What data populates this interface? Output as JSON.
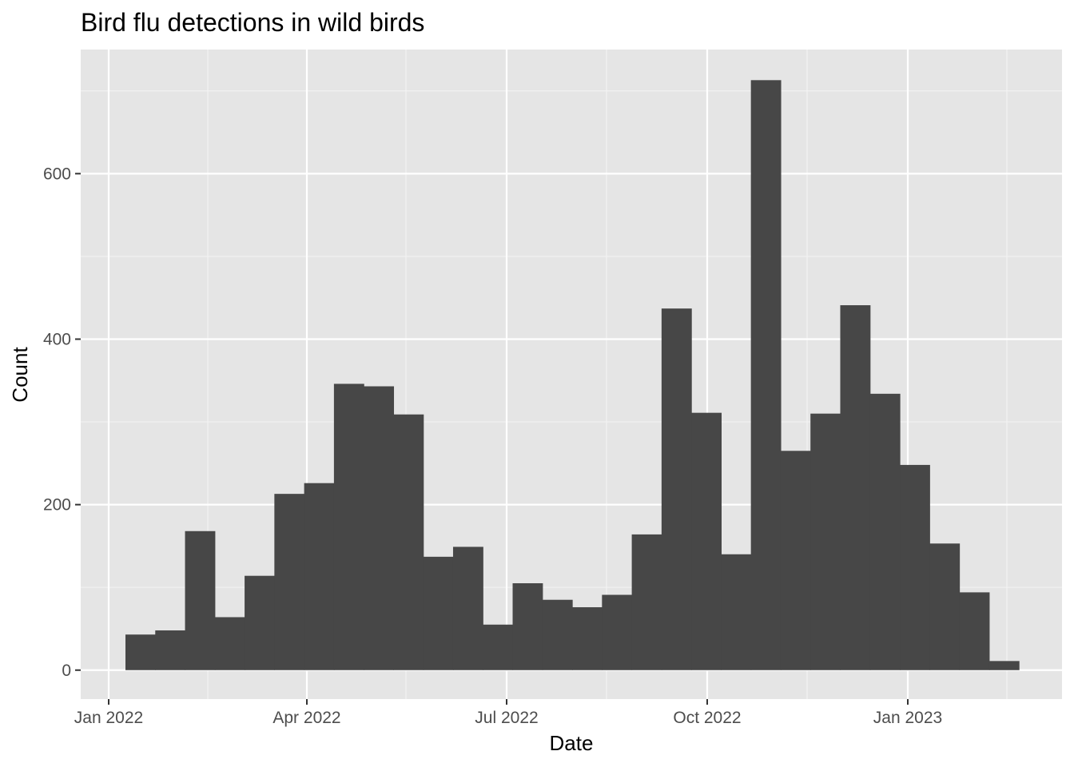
{
  "chart_data": {
    "type": "bar",
    "title": "Bird flu detections in wild birds",
    "xlabel": "Date",
    "ylabel": "Count",
    "x_tick_labels": [
      "Jan 2022",
      "Apr 2022",
      "Jul 2022",
      "Oct 2022",
      "Jan 2023"
    ],
    "y_tick_labels": [
      "0",
      "200",
      "400",
      "600"
    ],
    "y_ticks": [
      0,
      200,
      400,
      600
    ],
    "ylim": [
      -35,
      750
    ],
    "bin_count": 30,
    "values": [
      43,
      48,
      168,
      64,
      114,
      213,
      226,
      346,
      343,
      309,
      137,
      149,
      55,
      105,
      85,
      76,
      91,
      164,
      437,
      311,
      140,
      713,
      265,
      310,
      441,
      334,
      248,
      153,
      94,
      11
    ],
    "grid": true,
    "bar_color": "#474747",
    "panel_color": "#e5e5e5"
  }
}
